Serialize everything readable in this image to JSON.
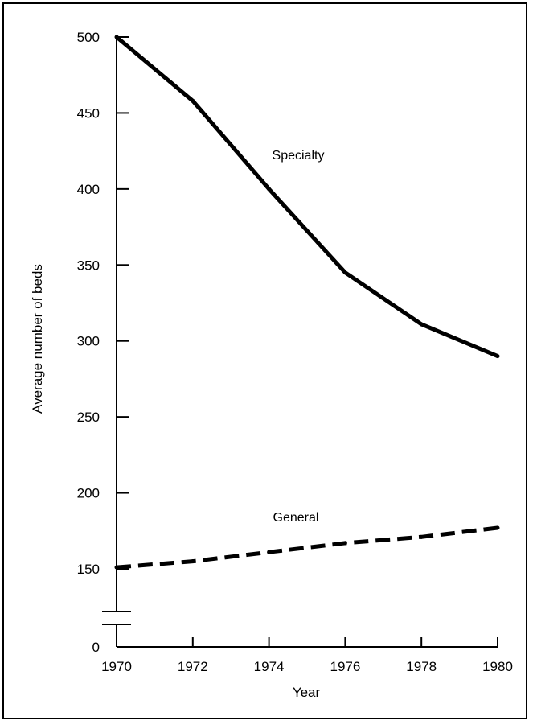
{
  "chart_data": {
    "type": "line",
    "title": "",
    "xlabel": "Year",
    "ylabel": "Average number of beds",
    "x_ticks": [
      "1970",
      "1972",
      "1974",
      "1976",
      "1978",
      "1980"
    ],
    "y_ticks": [
      "0",
      "150",
      "200",
      "250",
      "300",
      "350",
      "400",
      "450",
      "500"
    ],
    "xlim": [
      1970,
      1980
    ],
    "ylim": [
      0,
      500
    ],
    "y_axis_break": true,
    "grid": false,
    "series": [
      {
        "name": "Specialty",
        "style": "solid",
        "color": "#000000",
        "x": [
          1970,
          1972,
          1974,
          1976,
          1978,
          1980
        ],
        "y": [
          500,
          458,
          400,
          345,
          311,
          290
        ]
      },
      {
        "name": "General",
        "style": "dashed",
        "color": "#000000",
        "x": [
          1970,
          1972,
          1974,
          1976,
          1978,
          1980
        ],
        "y": [
          151,
          155,
          161,
          167,
          171,
          177
        ]
      }
    ]
  }
}
